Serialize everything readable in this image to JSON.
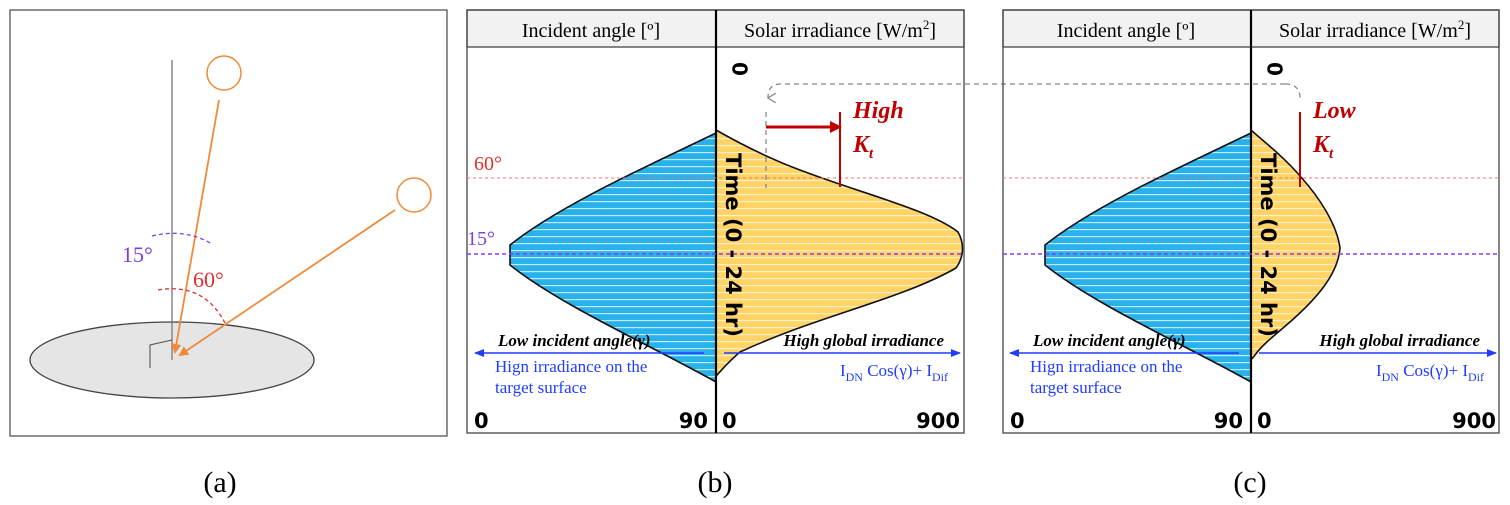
{
  "panel_a": {
    "label": "(a)",
    "angle_15": "15°",
    "angle_60": "60°",
    "colors": {
      "ray": "#f08a3a",
      "angle15": "#7b3fe4",
      "angle60": "#e03030",
      "disk": "#e5e5e5"
    }
  },
  "panel_b": {
    "label": "(b)",
    "header_left": "Incident angle [º]",
    "header_right_main": "Solar irradiance [W/m",
    "header_right_sup": "2",
    "header_right_close": "]",
    "axis_zero_top": "0",
    "time_label": "Time (0 - 24 hr)",
    "ref_60": "60°",
    "ref_15": "15°",
    "kt_word": "High",
    "kt_symbol": "K",
    "kt_sub": "t",
    "left_note_title": "Low incident angle(γ)",
    "left_note_line1": "Hign irradiance on the",
    "left_note_line2": "target surface",
    "right_note_title": "High global irradiance",
    "formula_i1": "I",
    "formula_dn": "DN",
    "formula_mid": " Cos(γ)+ I",
    "formula_dif": "Dif",
    "axis_left_min": "0",
    "axis_left_max": "90",
    "axis_right_min": "0",
    "axis_right_max": "900"
  },
  "panel_c": {
    "label": "(c)",
    "header_left": "Incident angle [º]",
    "header_right_main": "Solar irradiance [W/m",
    "header_right_sup": "2",
    "header_right_close": "]",
    "axis_zero_top": "0",
    "time_label": "Time (0 - 24 hr)",
    "kt_word": "Low",
    "kt_symbol": "K",
    "kt_sub": "t",
    "left_note_title": "Low incident angle(γ)",
    "left_note_line1": "Hign irradiance on the",
    "left_note_line2": "target surface",
    "right_note_title": "High global irradiance",
    "formula_i1": "I",
    "formula_dn": "DN",
    "formula_mid": " Cos(γ)+ I",
    "formula_dif": "Dif",
    "axis_left_min": "0",
    "axis_left_max": "90",
    "axis_right_min": "0",
    "axis_right_max": "900"
  },
  "colors": {
    "incident_fill": "#29b1ea",
    "irradiance_fill": "#ffd366",
    "ref60_line": "#ff6e6e",
    "ref15_line": "#8a3cf0",
    "annotation_red": "#c00000",
    "note_blue": "#1f3cff"
  }
}
